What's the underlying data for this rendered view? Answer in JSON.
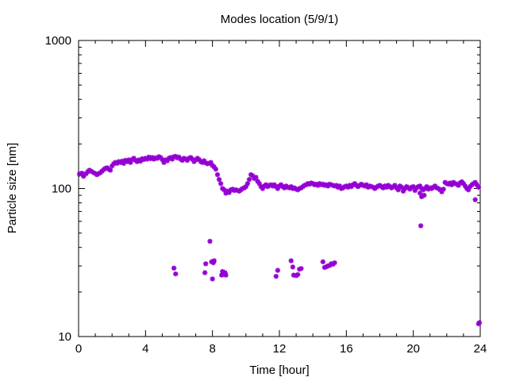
{
  "chart_data": {
    "type": "scatter",
    "title": "Modes location (5/9/1)",
    "xlabel": "Time [hour]",
    "ylabel": "Particle size [nm]",
    "xlim": [
      0,
      24
    ],
    "ylim": [
      10,
      1000
    ],
    "yscale": "log",
    "x_ticks": [
      0,
      4,
      8,
      12,
      16,
      20,
      24
    ],
    "x_tick_labels": [
      "0",
      "4",
      "8",
      "12",
      "16",
      "20",
      "24"
    ],
    "y_ticks": [
      10,
      100,
      1000
    ],
    "y_tick_labels": [
      "10",
      "100",
      "1000"
    ],
    "grid": false,
    "legend": "none",
    "marker_color": "#9400d3",
    "series": [
      {
        "points": [
          [
            0.05,
            125
          ],
          [
            0.2,
            127
          ],
          [
            0.3,
            121
          ],
          [
            0.45,
            126
          ],
          [
            0.55,
            130
          ],
          [
            0.65,
            133
          ],
          [
            0.8,
            130
          ],
          [
            0.95,
            127
          ],
          [
            1.1,
            124
          ],
          [
            1.2,
            126
          ],
          [
            1.3,
            128
          ],
          [
            1.4,
            131
          ],
          [
            1.5,
            134
          ],
          [
            1.6,
            137
          ],
          [
            1.7,
            138
          ],
          [
            1.8,
            135
          ],
          [
            1.9,
            133
          ],
          [
            2.0,
            142
          ],
          [
            2.1,
            147
          ],
          [
            2.2,
            150
          ],
          [
            2.3,
            148
          ],
          [
            2.4,
            152
          ],
          [
            2.5,
            150
          ],
          [
            2.6,
            153
          ],
          [
            2.7,
            148
          ],
          [
            2.8,
            155
          ],
          [
            2.9,
            152
          ],
          [
            3.0,
            156
          ],
          [
            3.1,
            150
          ],
          [
            3.2,
            157
          ],
          [
            3.3,
            160
          ],
          [
            3.4,
            155
          ],
          [
            3.5,
            152
          ],
          [
            3.6,
            156
          ],
          [
            3.7,
            153
          ],
          [
            3.8,
            159
          ],
          [
            3.9,
            157
          ],
          [
            4.0,
            160
          ],
          [
            4.1,
            158
          ],
          [
            4.2,
            163
          ],
          [
            4.3,
            159
          ],
          [
            4.4,
            162
          ],
          [
            4.5,
            158
          ],
          [
            4.6,
            161
          ],
          [
            4.7,
            160
          ],
          [
            4.8,
            164
          ],
          [
            4.9,
            162
          ],
          [
            5.0,
            157
          ],
          [
            5.1,
            150
          ],
          [
            5.2,
            156
          ],
          [
            5.3,
            154
          ],
          [
            5.4,
            160
          ],
          [
            5.5,
            162
          ],
          [
            5.6,
            158
          ],
          [
            5.7,
            164
          ],
          [
            5.8,
            165
          ],
          [
            5.9,
            161
          ],
          [
            6.0,
            163
          ],
          [
            6.1,
            158
          ],
          [
            6.2,
            155
          ],
          [
            6.3,
            160
          ],
          [
            6.4,
            158
          ],
          [
            6.5,
            155
          ],
          [
            6.6,
            160
          ],
          [
            6.7,
            162
          ],
          [
            6.8,
            158
          ],
          [
            6.9,
            152
          ],
          [
            7.0,
            156
          ],
          [
            7.1,
            160
          ],
          [
            7.2,
            157
          ],
          [
            7.3,
            152
          ],
          [
            7.4,
            150
          ],
          [
            7.5,
            154
          ],
          [
            7.6,
            149
          ],
          [
            7.7,
            147
          ],
          [
            7.8,
            148
          ],
          [
            7.9,
            150
          ],
          [
            8.0,
            143
          ],
          [
            8.1,
            140
          ],
          [
            8.2,
            135
          ],
          [
            8.3,
            124
          ],
          [
            8.4,
            115
          ],
          [
            8.5,
            108
          ],
          [
            8.6,
            100
          ],
          [
            8.7,
            98
          ],
          [
            8.8,
            93
          ],
          [
            8.9,
            96
          ],
          [
            9.0,
            94
          ],
          [
            9.1,
            98
          ],
          [
            9.2,
            99
          ],
          [
            9.3,
            97
          ],
          [
            9.4,
            98
          ],
          [
            9.5,
            97
          ],
          [
            9.6,
            96
          ],
          [
            9.7,
            98
          ],
          [
            9.8,
            100
          ],
          [
            9.9,
            101
          ],
          [
            10.0,
            103
          ],
          [
            10.1,
            108
          ],
          [
            10.2,
            115
          ],
          [
            10.3,
            124
          ],
          [
            10.4,
            122
          ],
          [
            10.5,
            117
          ],
          [
            10.6,
            119
          ],
          [
            10.7,
            112
          ],
          [
            10.8,
            108
          ],
          [
            10.9,
            103
          ],
          [
            11.0,
            100
          ],
          [
            11.1,
            104
          ],
          [
            11.2,
            106
          ],
          [
            11.3,
            103
          ],
          [
            11.4,
            105
          ],
          [
            11.5,
            106
          ],
          [
            11.6,
            104
          ],
          [
            11.7,
            106
          ],
          [
            11.8,
            103
          ],
          [
            11.9,
            100
          ],
          [
            12.0,
            104
          ],
          [
            12.1,
            106
          ],
          [
            12.2,
            103
          ],
          [
            12.3,
            101
          ],
          [
            12.4,
            104
          ],
          [
            12.5,
            102
          ],
          [
            12.6,
            101
          ],
          [
            12.7,
            103
          ],
          [
            12.8,
            100
          ],
          [
            12.9,
            101
          ],
          [
            13.0,
            99
          ],
          [
            13.1,
            98
          ],
          [
            13.2,
            100
          ],
          [
            13.3,
            101
          ],
          [
            13.4,
            103
          ],
          [
            13.5,
            105
          ],
          [
            13.6,
            106
          ],
          [
            13.7,
            108
          ],
          [
            13.8,
            107
          ],
          [
            13.9,
            109
          ],
          [
            14.0,
            108
          ],
          [
            14.1,
            106
          ],
          [
            14.2,
            107
          ],
          [
            14.3,
            105
          ],
          [
            14.4,
            108
          ],
          [
            14.5,
            106
          ],
          [
            14.6,
            107
          ],
          [
            14.7,
            105
          ],
          [
            14.8,
            106
          ],
          [
            14.9,
            104
          ],
          [
            15.0,
            107
          ],
          [
            15.1,
            106
          ],
          [
            15.2,
            105
          ],
          [
            15.3,
            104
          ],
          [
            15.4,
            105
          ],
          [
            15.5,
            102
          ],
          [
            15.6,
            104
          ],
          [
            15.7,
            100
          ],
          [
            15.8,
            101
          ],
          [
            15.9,
            103
          ],
          [
            16.0,
            104
          ],
          [
            16.1,
            102
          ],
          [
            16.2,
            105
          ],
          [
            16.3,
            103
          ],
          [
            16.4,
            106
          ],
          [
            16.5,
            108
          ],
          [
            16.6,
            105
          ],
          [
            16.7,
            103
          ],
          [
            16.8,
            105
          ],
          [
            16.9,
            107
          ],
          [
            17.0,
            105
          ],
          [
            17.1,
            104
          ],
          [
            17.2,
            106
          ],
          [
            17.3,
            102
          ],
          [
            17.4,
            104
          ],
          [
            17.5,
            103
          ],
          [
            17.6,
            102
          ],
          [
            17.7,
            100
          ],
          [
            17.8,
            102
          ],
          [
            17.9,
            104
          ],
          [
            18.0,
            105
          ],
          [
            18.1,
            103
          ],
          [
            18.2,
            101
          ],
          [
            18.3,
            104
          ],
          [
            18.4,
            102
          ],
          [
            18.5,
            105
          ],
          [
            18.6,
            103
          ],
          [
            18.7,
            101
          ],
          [
            18.8,
            103
          ],
          [
            18.9,
            105
          ],
          [
            19.0,
            101
          ],
          [
            19.1,
            98
          ],
          [
            19.2,
            104
          ],
          [
            19.3,
            102
          ],
          [
            19.4,
            96
          ],
          [
            19.5,
            100
          ],
          [
            19.6,
            103
          ],
          [
            19.7,
            101
          ],
          [
            19.8,
            99
          ],
          [
            19.9,
            102
          ],
          [
            20.0,
            103
          ],
          [
            20.1,
            97
          ],
          [
            20.2,
            101
          ],
          [
            20.3,
            103
          ],
          [
            20.4,
            104
          ],
          [
            20.5,
            100
          ],
          [
            20.6,
            98
          ],
          [
            20.7,
            100
          ],
          [
            20.8,
            103
          ],
          [
            20.9,
            99
          ],
          [
            21.0,
            101
          ],
          [
            21.1,
            100
          ],
          [
            21.2,
            102
          ],
          [
            21.3,
            104
          ],
          [
            21.4,
            101
          ],
          [
            21.5,
            100
          ],
          [
            21.6,
            98
          ],
          [
            21.7,
            95
          ],
          [
            21.8,
            99
          ],
          [
            21.9,
            110
          ],
          [
            22.0,
            108
          ],
          [
            22.1,
            107
          ],
          [
            22.2,
            109
          ],
          [
            22.3,
            106
          ],
          [
            22.4,
            110
          ],
          [
            22.5,
            108
          ],
          [
            22.6,
            107
          ],
          [
            22.7,
            105
          ],
          [
            22.8,
            109
          ],
          [
            22.9,
            111
          ],
          [
            23.0,
            108
          ],
          [
            23.1,
            104
          ],
          [
            23.2,
            100
          ],
          [
            23.3,
            98
          ],
          [
            23.4,
            103
          ],
          [
            23.5,
            106
          ],
          [
            23.6,
            108
          ],
          [
            23.7,
            110
          ],
          [
            23.8,
            106
          ],
          [
            23.9,
            102
          ],
          [
            20.4,
            93
          ],
          [
            20.5,
            88
          ],
          [
            20.65,
            90
          ],
          [
            23.7,
            84
          ],
          [
            20.45,
            56
          ],
          [
            5.7,
            29
          ],
          [
            5.8,
            26.5
          ],
          [
            7.55,
            27
          ],
          [
            7.6,
            31
          ],
          [
            7.85,
            44
          ],
          [
            7.95,
            32
          ],
          [
            8.05,
            31.5
          ],
          [
            8.1,
            32.5
          ],
          [
            8.0,
            24.5
          ],
          [
            8.55,
            26
          ],
          [
            8.6,
            27.5
          ],
          [
            8.7,
            26.5
          ],
          [
            8.75,
            27
          ],
          [
            8.8,
            26
          ],
          [
            11.8,
            25.5
          ],
          [
            11.9,
            28
          ],
          [
            12.7,
            32.5
          ],
          [
            12.8,
            29.5
          ],
          [
            12.85,
            26
          ],
          [
            13.0,
            25.8
          ],
          [
            13.1,
            26.2
          ],
          [
            13.2,
            28.5
          ],
          [
            13.3,
            28.8
          ],
          [
            14.6,
            32
          ],
          [
            14.7,
            29.3
          ],
          [
            14.8,
            29.6
          ],
          [
            14.9,
            30
          ],
          [
            15.0,
            30.2
          ],
          [
            15.1,
            31
          ],
          [
            15.2,
            30.8
          ],
          [
            15.3,
            31.5
          ],
          [
            23.9,
            12.2
          ],
          [
            23.95,
            12.4
          ]
        ]
      }
    ]
  }
}
